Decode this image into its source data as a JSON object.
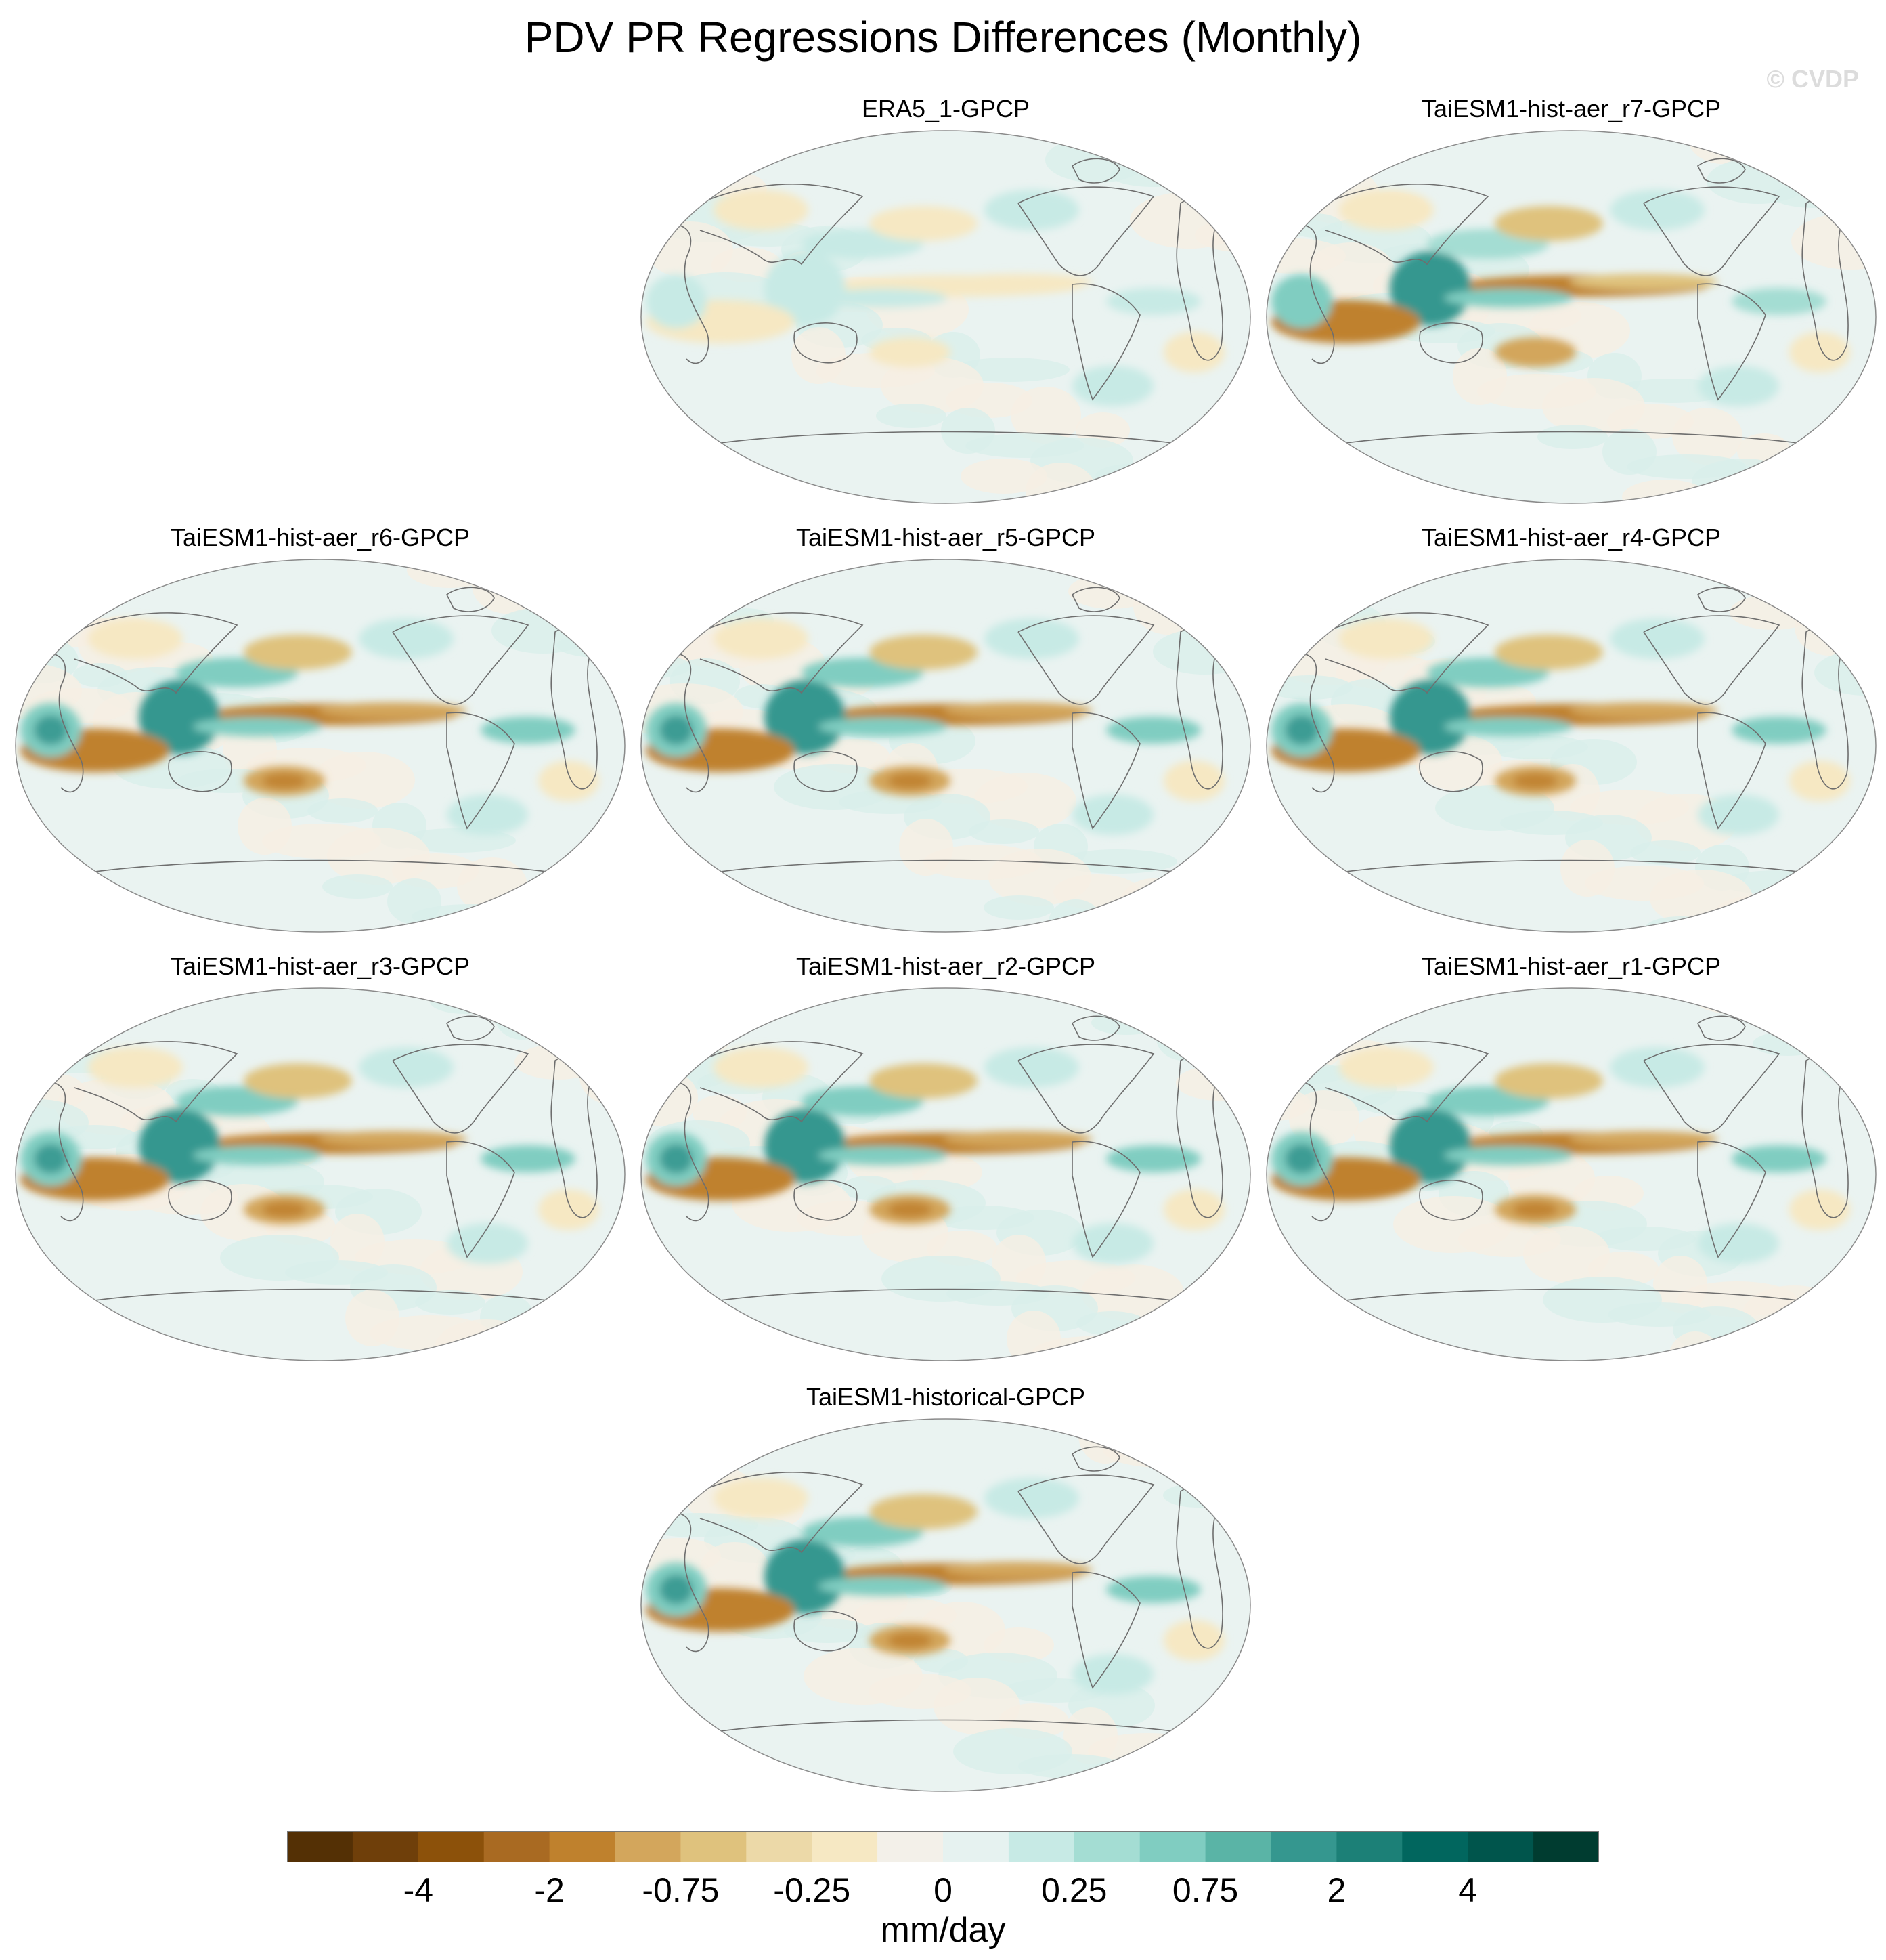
{
  "title": "PDV PR Regressions Differences (Monthly)",
  "watermark": "© CVDP",
  "panels": [
    {
      "title": "ERA5_1-GPCP",
      "col": 1,
      "row": 0,
      "strength": 0.35
    },
    {
      "title": "TaiESM1-hist-aer_r7-GPCP",
      "col": 2,
      "row": 0,
      "strength": 0.9
    },
    {
      "title": "TaiESM1-hist-aer_r6-GPCP",
      "col": 0,
      "row": 1,
      "strength": 1.0
    },
    {
      "title": "TaiESM1-hist-aer_r5-GPCP",
      "col": 1,
      "row": 1,
      "strength": 0.95
    },
    {
      "title": "TaiESM1-hist-aer_r4-GPCP",
      "col": 2,
      "row": 1,
      "strength": 1.0
    },
    {
      "title": "TaiESM1-hist-aer_r3-GPCP",
      "col": 0,
      "row": 2,
      "strength": 0.95
    },
    {
      "title": "TaiESM1-hist-aer_r2-GPCP",
      "col": 1,
      "row": 2,
      "strength": 1.0
    },
    {
      "title": "TaiESM1-hist-aer_r1-GPCP",
      "col": 2,
      "row": 2,
      "strength": 0.95
    },
    {
      "title": "TaiESM1-historical-GPCP",
      "col": 1,
      "row": 3,
      "strength": 1.0
    }
  ],
  "colorbar": {
    "colors": [
      "#543005",
      "#6f3f0a",
      "#8c510a",
      "#a96a22",
      "#bf812d",
      "#d3a65c",
      "#dfc27d",
      "#ecd9a8",
      "#f6e8c3",
      "#f3f0e9",
      "#e6f2f0",
      "#c7eae5",
      "#a4ddd3",
      "#80cdc1",
      "#5ab4a6",
      "#35978f",
      "#1c8077",
      "#01665e",
      "#00554c",
      "#003c30"
    ],
    "tick_labels": [
      "-4",
      "-2",
      "-0.75",
      "-0.25",
      "0",
      "0.25",
      "0.75",
      "2",
      "4"
    ],
    "units": "mm/day"
  }
}
